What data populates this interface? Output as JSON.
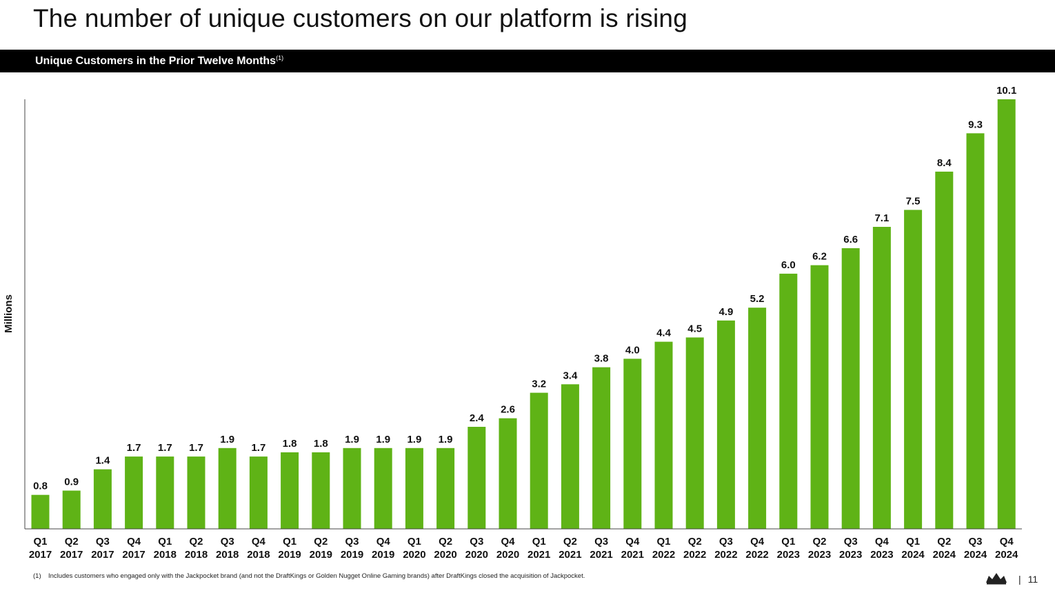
{
  "title": "The number of unique customers on our platform is rising",
  "header": {
    "label": "Unique Customers in the Prior Twelve Months",
    "footnote_ref": "(1)"
  },
  "chart_data": {
    "type": "bar",
    "title": "Unique Customers in the Prior Twelve Months",
    "ylabel": "Millions",
    "xlabel": "",
    "ylim": [
      0,
      10.1
    ],
    "grid": false,
    "bar_color": "#5FB316",
    "categories": [
      "Q1 2017",
      "Q2 2017",
      "Q3 2017",
      "Q4 2017",
      "Q1 2018",
      "Q2 2018",
      "Q3 2018",
      "Q4 2018",
      "Q1 2019",
      "Q2 2019",
      "Q3 2019",
      "Q4 2019",
      "Q1 2020",
      "Q2 2020",
      "Q3 2020",
      "Q4 2020",
      "Q1 2021",
      "Q2 2021",
      "Q3 2021",
      "Q4 2021",
      "Q1 2022",
      "Q2 2022",
      "Q3 2022",
      "Q4 2022",
      "Q1 2023",
      "Q2 2023",
      "Q3 2023",
      "Q4 2023",
      "Q1 2024",
      "Q2 2024",
      "Q3 2024",
      "Q4 2024"
    ],
    "values": [
      0.8,
      0.9,
      1.4,
      1.7,
      1.7,
      1.7,
      1.9,
      1.7,
      1.8,
      1.8,
      1.9,
      1.9,
      1.9,
      1.9,
      2.4,
      2.6,
      3.2,
      3.4,
      3.8,
      4.0,
      4.4,
      4.5,
      4.9,
      5.2,
      6.0,
      6.2,
      6.6,
      7.1,
      7.5,
      8.4,
      9.3,
      10.1
    ],
    "labels": [
      "0.8",
      "0.9",
      "1.4",
      "1.7",
      "1.7",
      "1.7",
      "1.9",
      "1.7",
      "1.8",
      "1.8",
      "1.9",
      "1.9",
      "1.9",
      "1.9",
      "2.4",
      "2.6",
      "3.2",
      "3.4",
      "3.8",
      "4.0",
      "4.4",
      "4.5",
      "4.9",
      "5.2",
      "6.0",
      "6.2",
      "6.6",
      "7.1",
      "7.5",
      "8.4",
      "9.3",
      "10.1"
    ]
  },
  "footnote": {
    "number": "(1)",
    "text": "Includes customers who engaged only with the Jackpocket brand (and not the DraftKings or Golden Nugget Online Gaming brands) after DraftKings closed the acquisition of Jackpocket."
  },
  "page": {
    "separator": "|",
    "number": "11"
  },
  "icons": {
    "logo": "crown-icon"
  }
}
